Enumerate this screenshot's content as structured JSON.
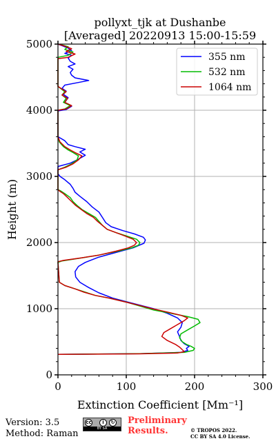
{
  "chart_data": {
    "type": "line",
    "title_line1": "pollyxt_tjk at Dushanbe",
    "title_line2": "[Averaged] 20220913 15:00-15:59",
    "xlabel": "Extinction Coefficient [Mm⁻¹]",
    "ylabel": "Height (m)",
    "xlim": [
      0,
      300
    ],
    "ylim": [
      0,
      5000
    ],
    "xticks": [
      "0",
      "100",
      "200",
      "300"
    ],
    "yticks": [
      "0",
      "1000",
      "2000",
      "3000",
      "4000",
      "5000"
    ],
    "grid": true,
    "legend_position": "top-right",
    "series": [
      {
        "name": "355 nm",
        "color": "#0000ff",
        "points": [
          [
            0,
            310
          ],
          [
            120,
            320
          ],
          [
            180,
            340
          ],
          [
            190,
            370
          ],
          [
            188,
            400
          ],
          [
            192,
            430
          ],
          [
            185,
            470
          ],
          [
            180,
            520
          ],
          [
            178,
            580
          ],
          [
            175,
            650
          ],
          [
            180,
            720
          ],
          [
            182,
            790
          ],
          [
            175,
            860
          ],
          [
            160,
            930
          ],
          [
            140,
            1000
          ],
          [
            110,
            1080
          ],
          [
            80,
            1160
          ],
          [
            60,
            1240
          ],
          [
            45,
            1320
          ],
          [
            32,
            1400
          ],
          [
            26,
            1480
          ],
          [
            25,
            1560
          ],
          [
            30,
            1640
          ],
          [
            40,
            1700
          ],
          [
            60,
            1780
          ],
          [
            85,
            1850
          ],
          [
            110,
            1920
          ],
          [
            126,
            1990
          ],
          [
            128,
            2040
          ],
          [
            125,
            2080
          ],
          [
            112,
            2130
          ],
          [
            95,
            2180
          ],
          [
            78,
            2240
          ],
          [
            70,
            2300
          ],
          [
            65,
            2380
          ],
          [
            60,
            2460
          ],
          [
            50,
            2540
          ],
          [
            42,
            2620
          ],
          [
            32,
            2700
          ],
          [
            25,
            2760
          ],
          [
            22,
            2820
          ],
          [
            18,
            2880
          ],
          [
            10,
            2950
          ],
          [
            3,
            3000
          ],
          [
            0,
            3040
          ],
          [
            0,
            3150
          ],
          [
            18,
            3200
          ],
          [
            30,
            3260
          ],
          [
            40,
            3320
          ],
          [
            32,
            3370
          ],
          [
            40,
            3410
          ],
          [
            25,
            3450
          ],
          [
            15,
            3480
          ],
          [
            10,
            3540
          ],
          [
            0,
            3600
          ],
          [
            0,
            3990
          ],
          [
            12,
            4010
          ],
          [
            20,
            4060
          ],
          [
            10,
            4120
          ],
          [
            15,
            4190
          ],
          [
            8,
            4240
          ],
          [
            12,
            4290
          ],
          [
            6,
            4330
          ],
          [
            10,
            4380
          ],
          [
            30,
            4420
          ],
          [
            45,
            4450
          ],
          [
            25,
            4490
          ],
          [
            20,
            4530
          ],
          [
            18,
            4570
          ],
          [
            22,
            4620
          ],
          [
            15,
            4660
          ],
          [
            25,
            4700
          ],
          [
            18,
            4740
          ],
          [
            15,
            4790
          ],
          [
            20,
            4830
          ],
          [
            10,
            4860
          ],
          [
            20,
            4900
          ],
          [
            15,
            4940
          ],
          [
            5,
            4980
          ],
          [
            0,
            5000
          ]
        ]
      },
      {
        "name": "532 nm",
        "color": "#00bb00",
        "points": [
          [
            0,
            310
          ],
          [
            120,
            320
          ],
          [
            185,
            340
          ],
          [
            198,
            370
          ],
          [
            200,
            400
          ],
          [
            195,
            430
          ],
          [
            188,
            460
          ],
          [
            182,
            500
          ],
          [
            178,
            560
          ],
          [
            180,
            620
          ],
          [
            190,
            680
          ],
          [
            200,
            740
          ],
          [
            208,
            790
          ],
          [
            205,
            840
          ],
          [
            190,
            880
          ],
          [
            165,
            930
          ],
          [
            140,
            980
          ],
          [
            120,
            1040
          ],
          [
            100,
            1100
          ],
          [
            75,
            1160
          ],
          [
            55,
            1200
          ],
          [
            40,
            1250
          ],
          [
            25,
            1300
          ],
          [
            10,
            1350
          ],
          [
            2,
            1400
          ],
          [
            0,
            1700
          ],
          [
            5,
            1720
          ],
          [
            30,
            1760
          ],
          [
            60,
            1810
          ],
          [
            88,
            1870
          ],
          [
            108,
            1920
          ],
          [
            118,
            1960
          ],
          [
            120,
            2000
          ],
          [
            115,
            2050
          ],
          [
            100,
            2100
          ],
          [
            85,
            2150
          ],
          [
            72,
            2200
          ],
          [
            65,
            2260
          ],
          [
            60,
            2320
          ],
          [
            55,
            2380
          ],
          [
            45,
            2440
          ],
          [
            35,
            2500
          ],
          [
            28,
            2560
          ],
          [
            22,
            2620
          ],
          [
            18,
            2680
          ],
          [
            10,
            2740
          ],
          [
            4,
            2780
          ],
          [
            0,
            2800
          ],
          [
            0,
            3100
          ],
          [
            10,
            3140
          ],
          [
            20,
            3190
          ],
          [
            28,
            3250
          ],
          [
            30,
            3310
          ],
          [
            22,
            3360
          ],
          [
            15,
            3400
          ],
          [
            8,
            3450
          ],
          [
            2,
            3520
          ],
          [
            0,
            3600
          ],
          [
            0,
            4000
          ],
          [
            10,
            4020
          ],
          [
            18,
            4070
          ],
          [
            8,
            4120
          ],
          [
            12,
            4180
          ],
          [
            6,
            4230
          ],
          [
            10,
            4280
          ],
          [
            5,
            4320
          ],
          [
            0,
            4360
          ],
          [
            0,
            4800
          ],
          [
            15,
            4830
          ],
          [
            22,
            4880
          ],
          [
            10,
            4920
          ],
          [
            15,
            4960
          ],
          [
            5,
            4990
          ],
          [
            0,
            5000
          ]
        ]
      },
      {
        "name": "1064 nm",
        "color": "#cc0000",
        "points": [
          [
            0,
            310
          ],
          [
            120,
            318
          ],
          [
            175,
            330
          ],
          [
            185,
            350
          ],
          [
            182,
            380
          ],
          [
            178,
            420
          ],
          [
            172,
            460
          ],
          [
            160,
            520
          ],
          [
            152,
            580
          ],
          [
            155,
            640
          ],
          [
            165,
            700
          ],
          [
            175,
            760
          ],
          [
            185,
            820
          ],
          [
            190,
            860
          ],
          [
            180,
            900
          ],
          [
            160,
            950
          ],
          [
            138,
            1000
          ],
          [
            115,
            1060
          ],
          [
            95,
            1110
          ],
          [
            75,
            1160
          ],
          [
            55,
            1200
          ],
          [
            38,
            1250
          ],
          [
            25,
            1300
          ],
          [
            10,
            1350
          ],
          [
            2,
            1400
          ],
          [
            0,
            1710
          ],
          [
            8,
            1730
          ],
          [
            35,
            1770
          ],
          [
            60,
            1810
          ],
          [
            85,
            1870
          ],
          [
            103,
            1920
          ],
          [
            112,
            1960
          ],
          [
            115,
            2000
          ],
          [
            110,
            2050
          ],
          [
            98,
            2100
          ],
          [
            85,
            2150
          ],
          [
            72,
            2200
          ],
          [
            65,
            2260
          ],
          [
            58,
            2320
          ],
          [
            52,
            2380
          ],
          [
            42,
            2440
          ],
          [
            34,
            2500
          ],
          [
            26,
            2560
          ],
          [
            20,
            2620
          ],
          [
            14,
            2680
          ],
          [
            8,
            2740
          ],
          [
            2,
            2780
          ],
          [
            0,
            2800
          ],
          [
            0,
            3100
          ],
          [
            12,
            3140
          ],
          [
            22,
            3190
          ],
          [
            30,
            3250
          ],
          [
            35,
            3310
          ],
          [
            25,
            3360
          ],
          [
            18,
            3400
          ],
          [
            10,
            3450
          ],
          [
            3,
            3520
          ],
          [
            0,
            3600
          ],
          [
            0,
            4000
          ],
          [
            12,
            4020
          ],
          [
            20,
            4070
          ],
          [
            10,
            4120
          ],
          [
            14,
            4180
          ],
          [
            6,
            4230
          ],
          [
            12,
            4280
          ],
          [
            6,
            4320
          ],
          [
            0,
            4360
          ],
          [
            0,
            4780
          ],
          [
            15,
            4800
          ],
          [
            25,
            4850
          ],
          [
            12,
            4890
          ],
          [
            20,
            4930
          ],
          [
            10,
            4970
          ],
          [
            0,
            5000
          ]
        ]
      }
    ]
  },
  "footer": {
    "version": "Version: 3.5",
    "method": "Method: Raman",
    "cc_caption": "BY  SA",
    "cc_icon_cc": "cc",
    "cc_icon_by": "i",
    "cc_icon_sa": "↻",
    "preliminary_line1": "Preliminary",
    "preliminary_line2": "Results.",
    "copyright_line1": "© TROPOS 2022.",
    "copyright_line2": "CC BY SA 4.0 License."
  }
}
